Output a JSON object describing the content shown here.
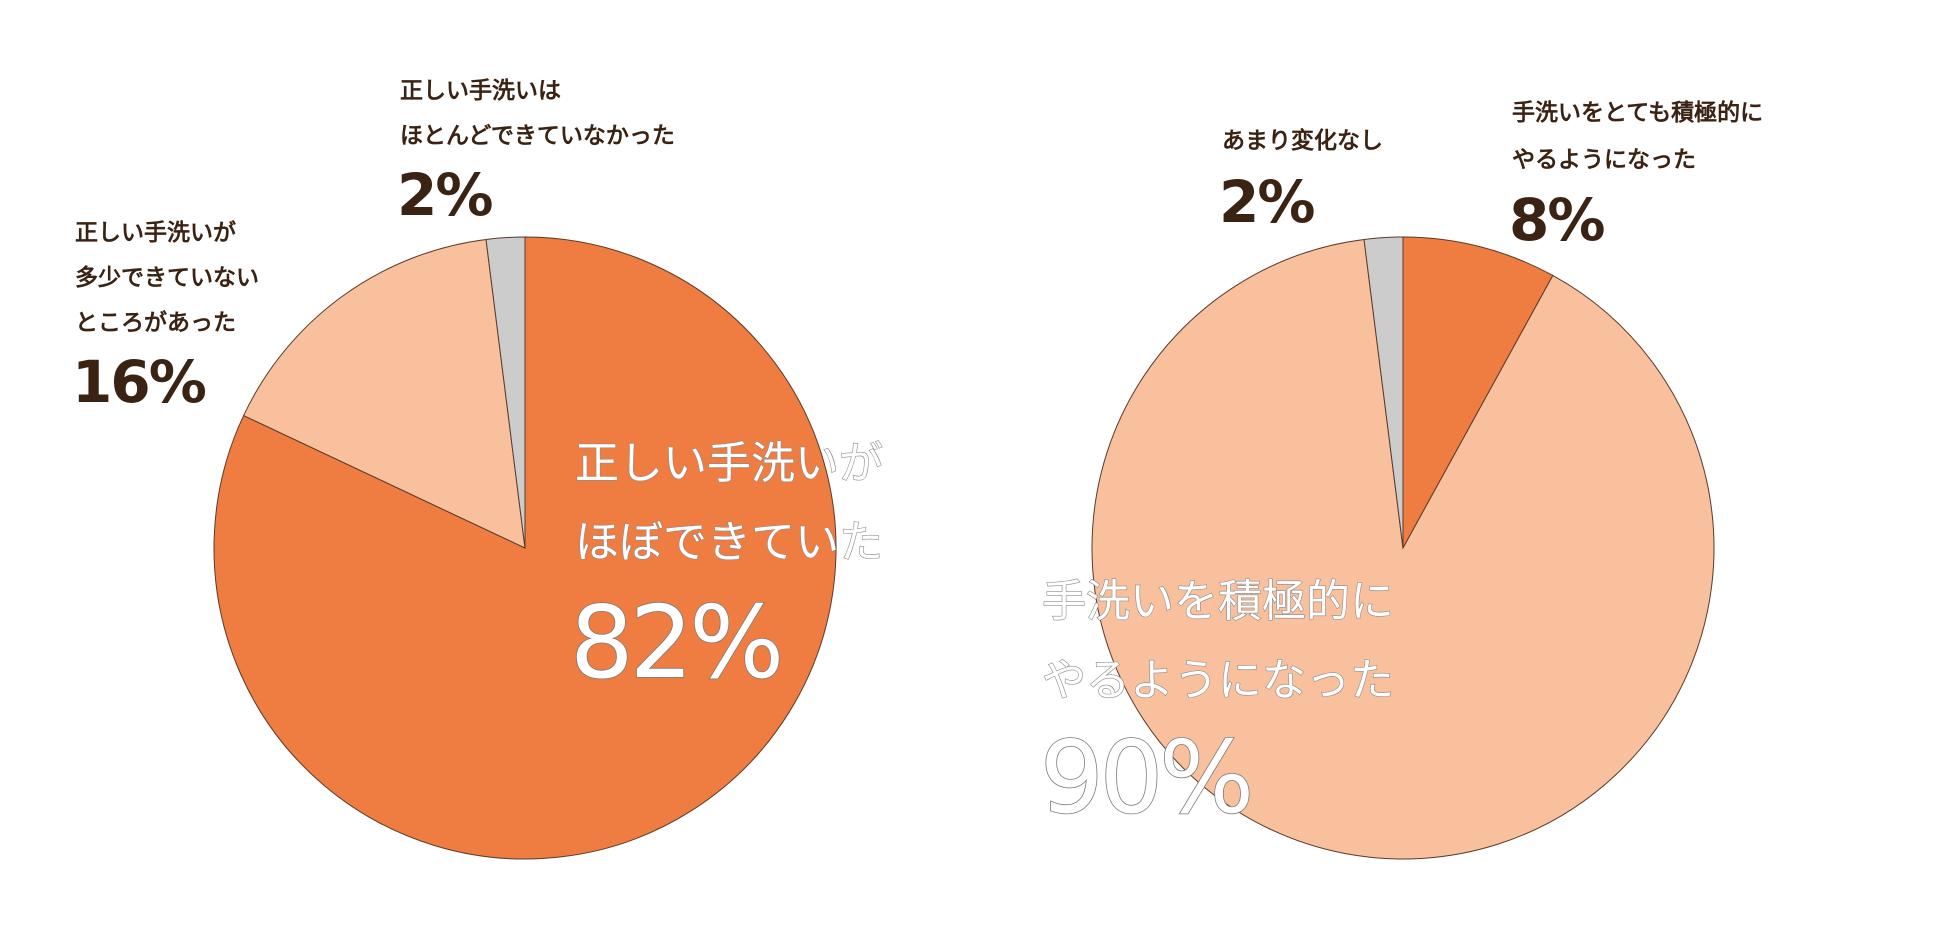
{
  "chart_data": [
    {
      "type": "pie",
      "title": "",
      "slices": [
        {
          "label_lines": [
            "正しい手洗いが",
            "ほぼできていた"
          ],
          "value": 82,
          "value_text": "82%",
          "color": "#ef7d41"
        },
        {
          "label_lines": [
            "正しい手洗いが",
            "多少できていない",
            "ところがあった"
          ],
          "value": 16,
          "value_text": "16%",
          "color": "#f8c09c"
        },
        {
          "label_lines": [
            "正しい手洗いは",
            "ほとんどできていなかった"
          ],
          "value": 2,
          "value_text": "2%",
          "color": "#cccccc"
        }
      ]
    },
    {
      "type": "pie",
      "title": "",
      "slices": [
        {
          "label_lines": [
            "手洗いをとても積極的に",
            "やるようになった"
          ],
          "value": 8,
          "value_text": "8%",
          "color": "#ef7d41"
        },
        {
          "label_lines": [
            "手洗いを積極的に",
            "やるようになった"
          ],
          "value": 90,
          "value_text": "90%",
          "color": "#f8c09c"
        },
        {
          "label_lines": [
            "あまり変化なし"
          ],
          "value": 2,
          "value_text": "2%",
          "color": "#cccccc"
        }
      ]
    }
  ],
  "colors": {
    "label_text": "#3b2314",
    "slice_outline": "#5a3b2a"
  }
}
